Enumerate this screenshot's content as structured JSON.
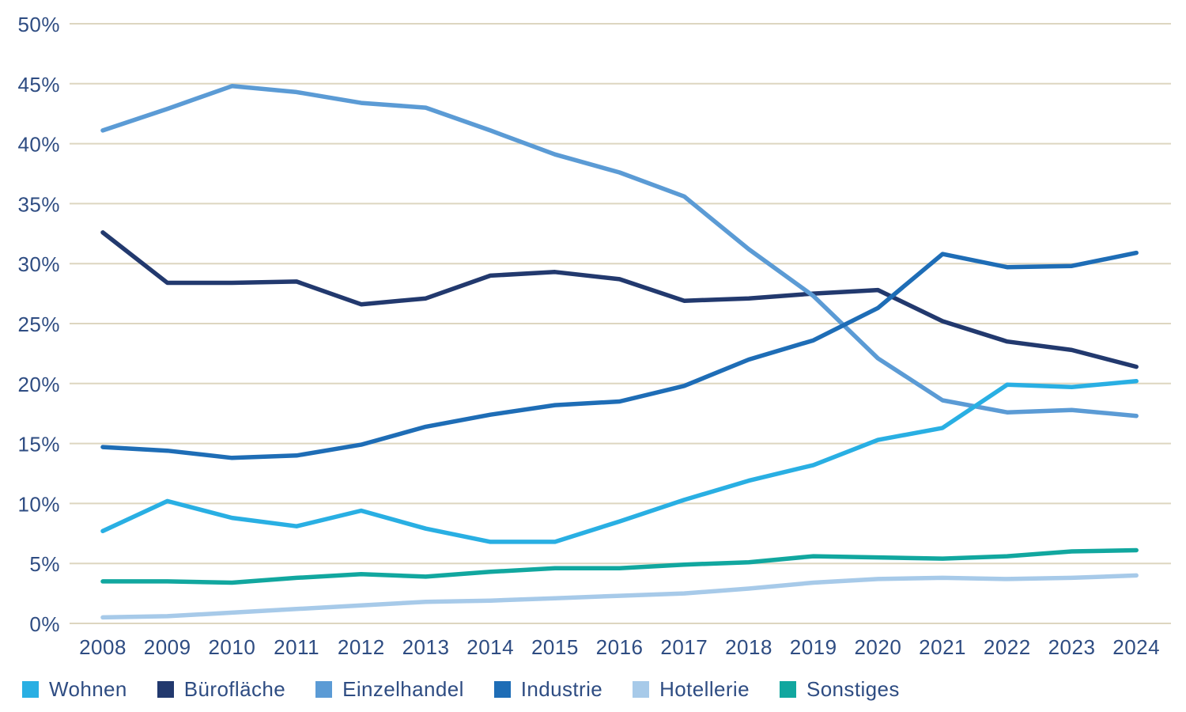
{
  "chart_data": {
    "type": "line",
    "title": "",
    "xlabel": "",
    "ylabel": "",
    "x": [
      2008,
      2009,
      2010,
      2011,
      2012,
      2013,
      2014,
      2015,
      2016,
      2017,
      2018,
      2019,
      2020,
      2021,
      2022,
      2023,
      2024
    ],
    "y_axis": {
      "min": 0,
      "max": 50,
      "step": 5,
      "tick_labels": [
        "0%",
        "5%",
        "10%",
        "15%",
        "20%",
        "25%",
        "30%",
        "35%",
        "40%",
        "45%",
        "50%"
      ]
    },
    "grid": "horizontal",
    "legend_position": "bottom-left",
    "series": [
      {
        "name": "Wohnen",
        "color": "#29AFE3",
        "values": [
          7.7,
          10.2,
          8.8,
          8.1,
          9.4,
          7.9,
          6.8,
          6.8,
          8.5,
          10.3,
          11.9,
          13.2,
          15.3,
          16.3,
          19.9,
          19.7,
          20.2
        ]
      },
      {
        "name": "Bürofläche",
        "color": "#22396E",
        "values": [
          32.6,
          28.4,
          28.4,
          28.5,
          26.6,
          27.1,
          29.0,
          29.3,
          28.7,
          26.9,
          27.1,
          27.5,
          27.8,
          25.2,
          23.5,
          22.8,
          21.4
        ]
      },
      {
        "name": "Einzelhandel",
        "color": "#5B9BD5",
        "values": [
          41.1,
          42.9,
          44.8,
          44.3,
          43.4,
          43.0,
          41.1,
          39.1,
          37.6,
          35.6,
          31.2,
          27.3,
          22.1,
          18.6,
          17.6,
          17.8,
          17.3
        ]
      },
      {
        "name": "Industrie",
        "color": "#1E6DB6",
        "values": [
          14.7,
          14.4,
          13.8,
          14.0,
          14.9,
          16.4,
          17.4,
          18.2,
          18.5,
          19.8,
          22.0,
          23.6,
          26.3,
          30.8,
          29.7,
          29.8,
          30.9
        ]
      },
      {
        "name": "Hotellerie",
        "color": "#A7CAE9",
        "values": [
          0.5,
          0.6,
          0.9,
          1.2,
          1.5,
          1.8,
          1.9,
          2.1,
          2.3,
          2.5,
          2.9,
          3.4,
          3.7,
          3.8,
          3.7,
          3.8,
          4.0
        ]
      },
      {
        "name": "Sonstiges",
        "color": "#11A79F",
        "values": [
          3.5,
          3.5,
          3.4,
          3.8,
          4.1,
          3.9,
          4.3,
          4.6,
          4.6,
          4.9,
          5.1,
          5.6,
          5.5,
          5.4,
          5.6,
          6.0,
          6.1
        ]
      }
    ],
    "colors": {
      "grid": "#DDD6C0",
      "axis_label": "#2E4C82",
      "background": "#FFFFFF"
    }
  }
}
